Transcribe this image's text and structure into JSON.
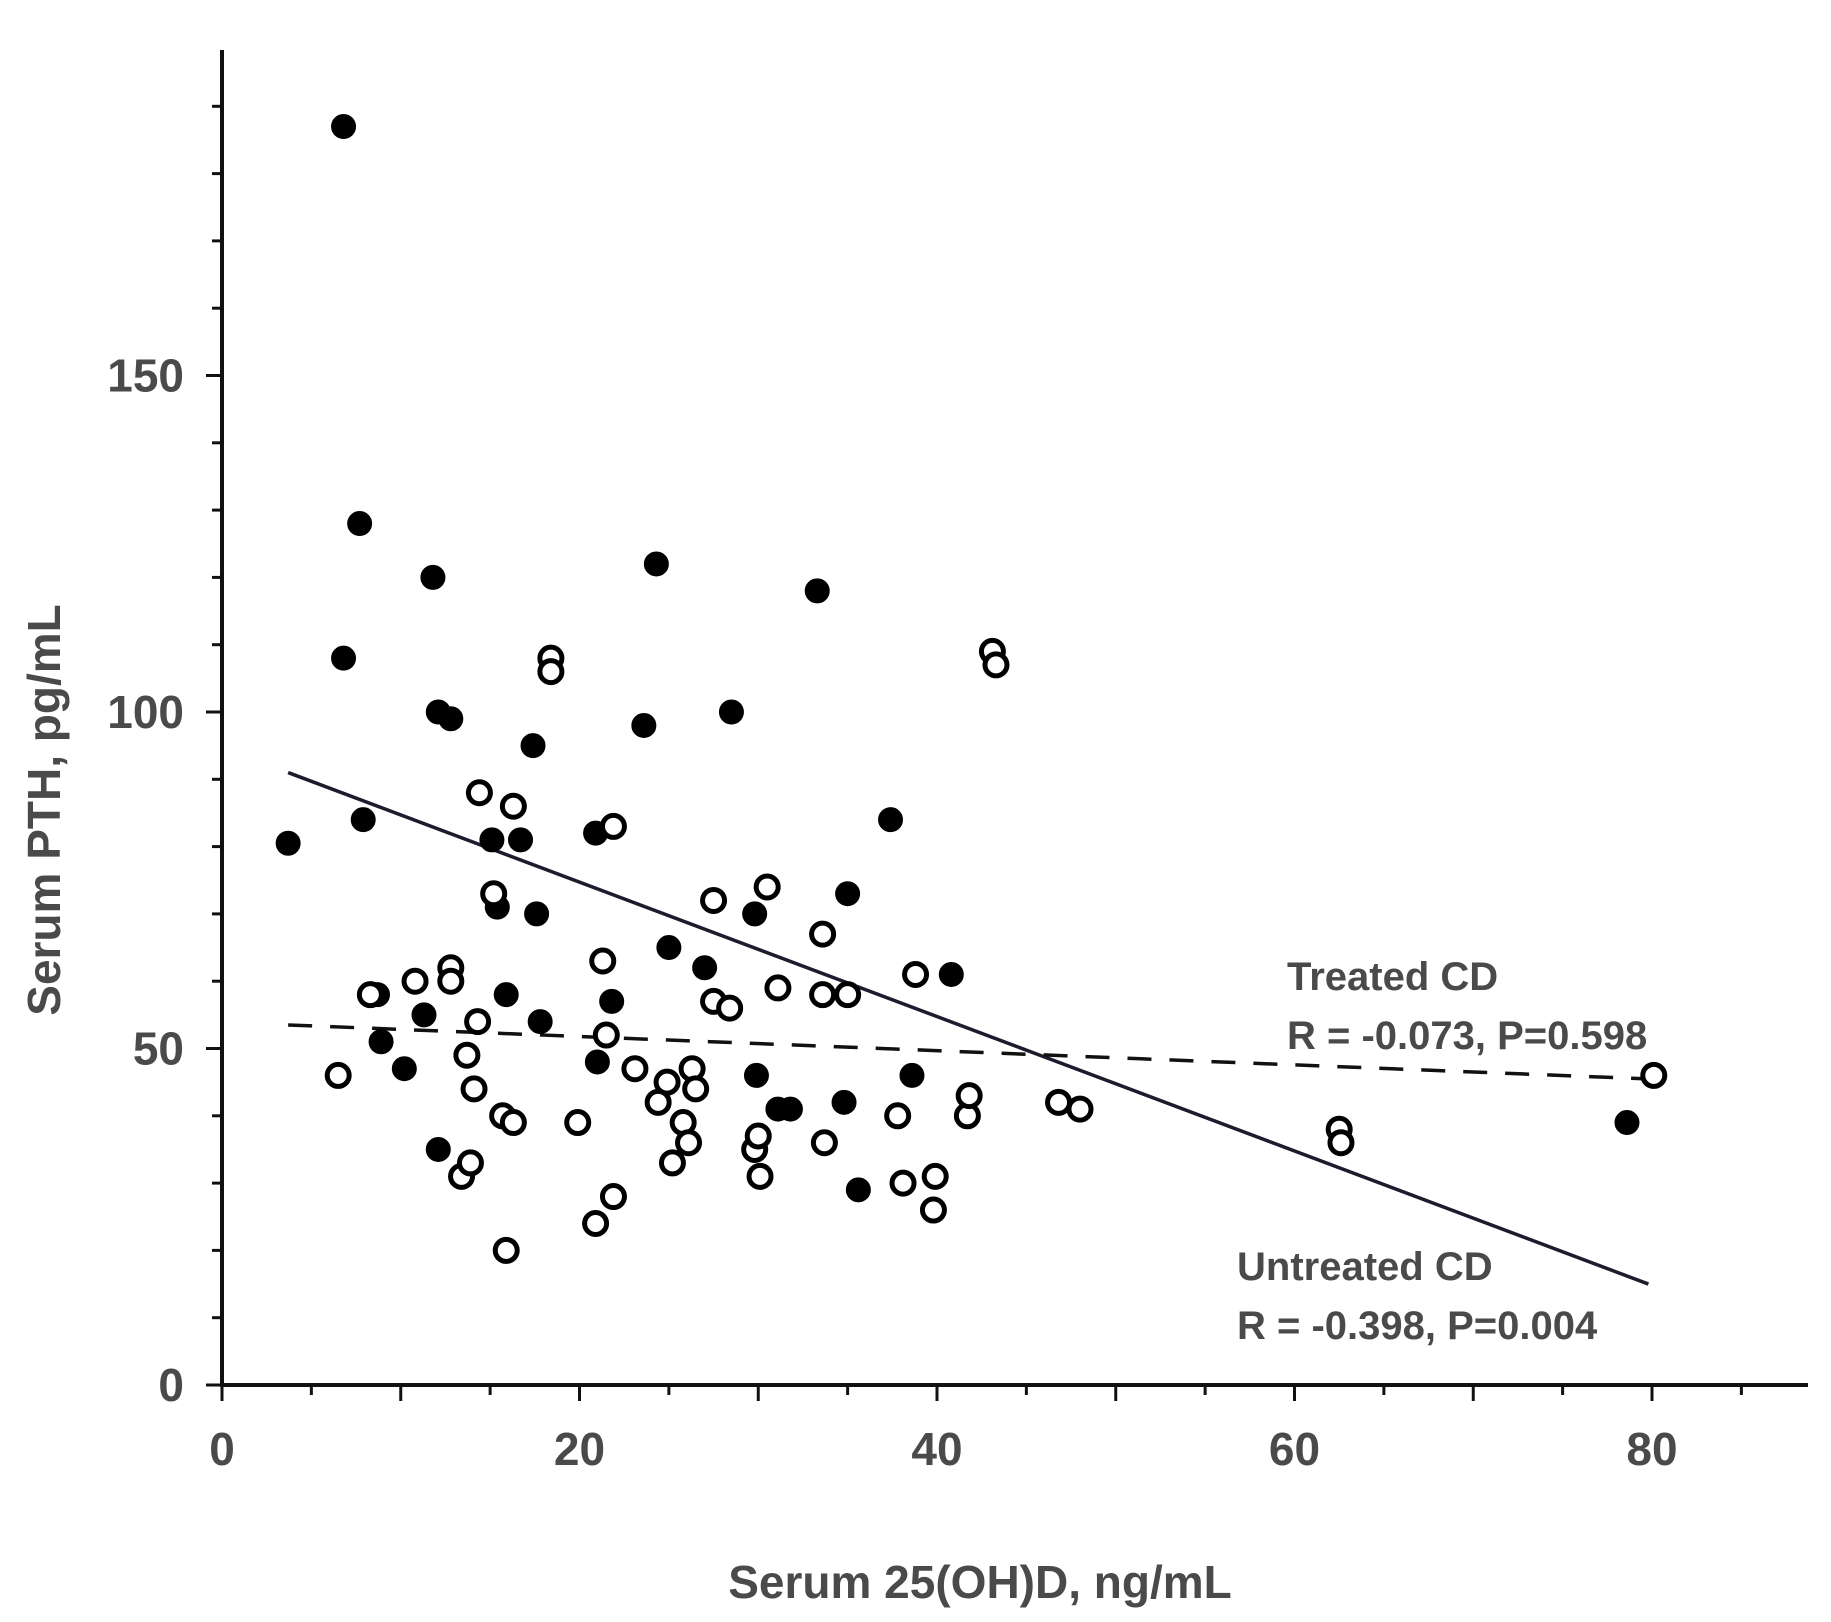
{
  "chart_data": {
    "type": "scatter",
    "title": "",
    "xlabel": "Serum 25(OH)D, ng/mL",
    "ylabel": "Serum PTH, pg/mL",
    "xlim": [
      0,
      88
    ],
    "ylim": [
      0,
      200
    ],
    "x_ticks": [
      0,
      20,
      40,
      60,
      80
    ],
    "y_ticks": [
      0,
      50,
      100,
      150
    ],
    "grid": false,
    "series": [
      {
        "name": "Untreated CD",
        "marker": "filled-circle",
        "color": "#000000",
        "points": [
          [
            3.7,
            80.5
          ],
          [
            6.8,
            187
          ],
          [
            6.8,
            108
          ],
          [
            7.7,
            128
          ],
          [
            7.9,
            84
          ],
          [
            8.7,
            58
          ],
          [
            8.9,
            51
          ],
          [
            10.2,
            47
          ],
          [
            11.3,
            55
          ],
          [
            11.8,
            120
          ],
          [
            12.1,
            35
          ],
          [
            12.1,
            100
          ],
          [
            12.8,
            99
          ],
          [
            15.1,
            81
          ],
          [
            15.4,
            71
          ],
          [
            15.9,
            58
          ],
          [
            16.7,
            81
          ],
          [
            17.4,
            95
          ],
          [
            17.6,
            70
          ],
          [
            17.8,
            54
          ],
          [
            20.9,
            82
          ],
          [
            21.0,
            48
          ],
          [
            21.8,
            57
          ],
          [
            23.6,
            98
          ],
          [
            24.3,
            122
          ],
          [
            25.0,
            65
          ],
          [
            27.0,
            62
          ],
          [
            28.5,
            100
          ],
          [
            29.8,
            70
          ],
          [
            29.9,
            46
          ],
          [
            31.1,
            41
          ],
          [
            31.8,
            41
          ],
          [
            33.3,
            118
          ],
          [
            34.8,
            42
          ],
          [
            35.0,
            73
          ],
          [
            35.6,
            29
          ],
          [
            37.4,
            84
          ],
          [
            38.6,
            46
          ],
          [
            40.8,
            61
          ],
          [
            78.6,
            39
          ]
        ]
      },
      {
        "name": "Treated CD",
        "marker": "open-circle",
        "color": "#000000",
        "points": [
          [
            6.5,
            46
          ],
          [
            8.3,
            58
          ],
          [
            10.8,
            60
          ],
          [
            12.8,
            62
          ],
          [
            12.8,
            60
          ],
          [
            13.4,
            31
          ],
          [
            13.7,
            49
          ],
          [
            13.9,
            33
          ],
          [
            14.1,
            44
          ],
          [
            14.3,
            54
          ],
          [
            14.4,
            88
          ],
          [
            15.2,
            73
          ],
          [
            15.7,
            40
          ],
          [
            15.9,
            20
          ],
          [
            16.3,
            86
          ],
          [
            16.3,
            39
          ],
          [
            18.4,
            108
          ],
          [
            18.4,
            106
          ],
          [
            19.9,
            39
          ],
          [
            20.9,
            24
          ],
          [
            21.3,
            63
          ],
          [
            21.5,
            52
          ],
          [
            21.9,
            83
          ],
          [
            21.9,
            28
          ],
          [
            23.1,
            47
          ],
          [
            24.4,
            42
          ],
          [
            24.9,
            45
          ],
          [
            25.2,
            33
          ],
          [
            25.8,
            39
          ],
          [
            26.1,
            36
          ],
          [
            26.3,
            47
          ],
          [
            26.5,
            44
          ],
          [
            27.5,
            72
          ],
          [
            27.5,
            57
          ],
          [
            28.4,
            56
          ],
          [
            29.8,
            35
          ],
          [
            30.0,
            37
          ],
          [
            30.1,
            31
          ],
          [
            30.5,
            74
          ],
          [
            31.1,
            59
          ],
          [
            33.6,
            67
          ],
          [
            33.6,
            58
          ],
          [
            33.7,
            36
          ],
          [
            35.0,
            58
          ],
          [
            37.8,
            40
          ],
          [
            38.1,
            30
          ],
          [
            38.8,
            61
          ],
          [
            39.8,
            26
          ],
          [
            39.9,
            31
          ],
          [
            41.7,
            40
          ],
          [
            41.8,
            43
          ],
          [
            43.1,
            109
          ],
          [
            43.3,
            107
          ],
          [
            46.8,
            42
          ],
          [
            48.0,
            41
          ],
          [
            62.5,
            38
          ],
          [
            62.6,
            36
          ],
          [
            80.1,
            46
          ]
        ]
      }
    ],
    "regression_lines": [
      {
        "name": "Untreated CD",
        "style": "solid",
        "x": [
          3.7,
          79.8
        ],
        "y": [
          91,
          15
        ]
      },
      {
        "name": "Treated CD",
        "style": "dashed",
        "x": [
          3.7,
          79.6
        ],
        "y": [
          53.5,
          45.5
        ]
      }
    ],
    "annotations": {
      "treated_title": "Treated CD",
      "treated_stats": "R = -0.073, P=0.598",
      "untreated_title": "Untreated CD",
      "untreated_stats": "R = -0.398, P=0.004"
    }
  }
}
